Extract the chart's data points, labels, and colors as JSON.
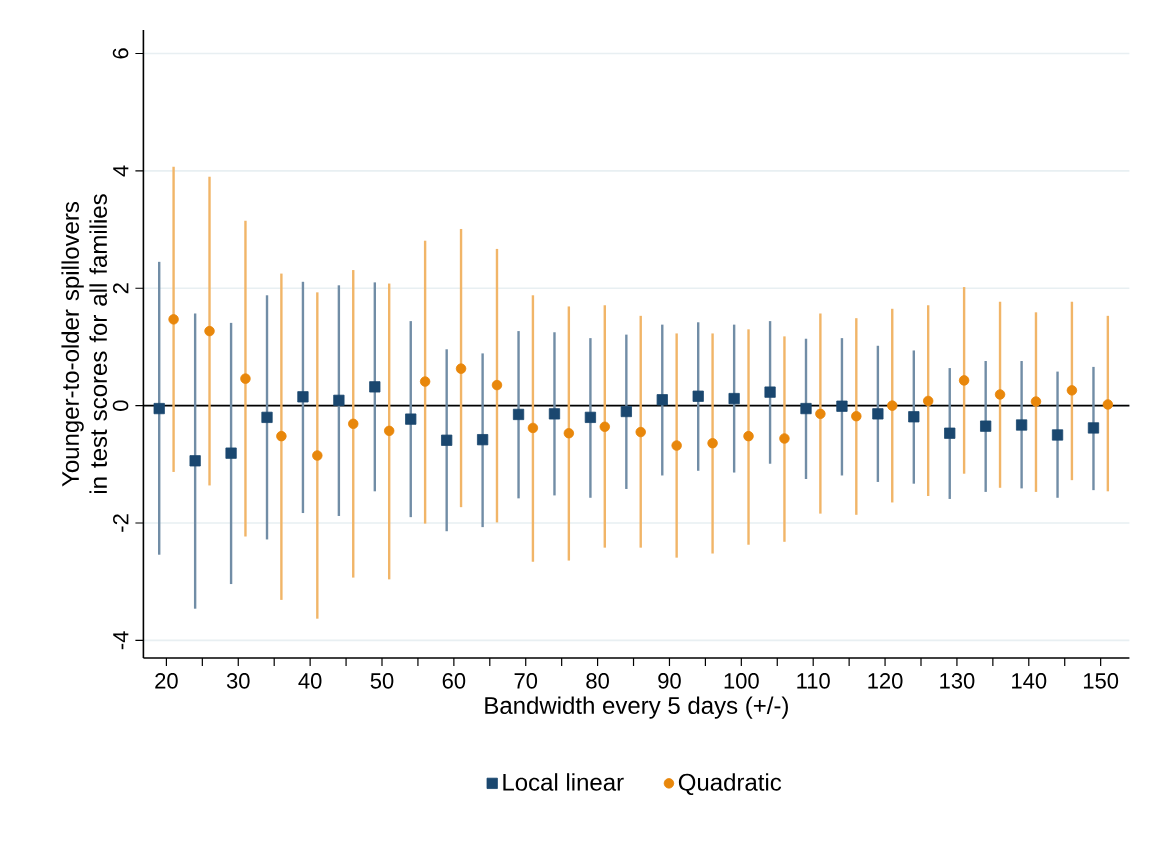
{
  "chart_data": {
    "type": "scatter",
    "xlabel": "Bandwidth every 5 days (+/-)",
    "ylabel": "Younger-to-older spillovers in test scores for all families",
    "xlim": [
      16.8,
      154
    ],
    "ylim": [
      -4.3,
      6.4
    ],
    "xticks": [
      20,
      {
        "value": 25,
        "label": null
      },
      30,
      {
        "value": 35,
        "label": null
      },
      40,
      {
        "value": 45,
        "label": null
      },
      50,
      {
        "value": 55,
        "label": null
      },
      60,
      {
        "value": 65,
        "label": null
      },
      70,
      {
        "value": 75,
        "label": null
      },
      80,
      {
        "value": 85,
        "label": null
      },
      90,
      {
        "value": 95,
        "label": null
      },
      100,
      {
        "value": 105,
        "label": null
      },
      110,
      {
        "value": 115,
        "label": null
      },
      120,
      {
        "value": 125,
        "label": null
      },
      130,
      {
        "value": 135,
        "label": null
      },
      140,
      {
        "value": 145,
        "label": null
      },
      150
    ],
    "yticks": [
      -4,
      -2,
      0,
      2,
      4,
      6
    ],
    "grid": "y",
    "legend": "bottom",
    "ref_lines": [
      {
        "axis": "y",
        "value": 0,
        "color": "#000000"
      }
    ],
    "series": [
      {
        "name": "Local linear",
        "color": "#1a476f",
        "marker": "square",
        "x": [
          19,
          24,
          29,
          34,
          39,
          44,
          49,
          54,
          59,
          64,
          69,
          74,
          79,
          84,
          89,
          94,
          99,
          104,
          109,
          114,
          119,
          124,
          129,
          134,
          139,
          144,
          149
        ],
        "values": [
          -0.05,
          -0.94,
          -0.81,
          -0.2,
          0.15,
          0.09,
          0.32,
          -0.23,
          -0.59,
          -0.58,
          -0.15,
          -0.14,
          -0.2,
          -0.1,
          0.1,
          0.16,
          0.12,
          0.23,
          -0.05,
          -0.01,
          -0.14,
          -0.19,
          -0.47,
          -0.35,
          -0.33,
          -0.5,
          -0.38
        ],
        "errors": [
          [
            -2.54,
            2.45
          ],
          [
            -3.46,
            1.57
          ],
          [
            -3.04,
            1.41
          ],
          [
            -2.28,
            1.88
          ],
          [
            -1.83,
            2.11
          ],
          [
            -1.88,
            2.05
          ],
          [
            -1.46,
            2.1
          ],
          [
            -1.9,
            1.44
          ],
          [
            -2.14,
            0.96
          ],
          [
            -2.07,
            0.89
          ],
          [
            -1.58,
            1.27
          ],
          [
            -1.53,
            1.25
          ],
          [
            -1.57,
            1.15
          ],
          [
            -1.42,
            1.21
          ],
          [
            -1.19,
            1.38
          ],
          [
            -1.11,
            1.42
          ],
          [
            -1.14,
            1.38
          ],
          [
            -0.99,
            1.44
          ],
          [
            -1.25,
            1.14
          ],
          [
            -1.19,
            1.15
          ],
          [
            -1.3,
            1.02
          ],
          [
            -1.33,
            0.94
          ],
          [
            -1.59,
            0.64
          ],
          [
            -1.47,
            0.76
          ],
          [
            -1.41,
            0.76
          ],
          [
            -1.57,
            0.58
          ],
          [
            -1.44,
            0.66
          ]
        ]
      },
      {
        "name": "Quadratic",
        "color": "#e8870b",
        "marker": "circle",
        "x": [
          21,
          26,
          31,
          36,
          41,
          46,
          51,
          56,
          61,
          66,
          71,
          76,
          81,
          86,
          91,
          96,
          101,
          106,
          111,
          116,
          121,
          126,
          131,
          136,
          141,
          146,
          151
        ],
        "values": [
          1.47,
          1.27,
          0.46,
          -0.52,
          -0.85,
          -0.31,
          -0.43,
          0.41,
          0.63,
          0.35,
          -0.38,
          -0.47,
          -0.36,
          -0.45,
          -0.68,
          -0.64,
          -0.52,
          -0.56,
          -0.14,
          -0.18,
          0.0,
          0.08,
          0.43,
          0.19,
          0.07,
          0.26,
          0.02
        ],
        "errors": [
          [
            -1.13,
            4.07
          ],
          [
            -1.36,
            3.9
          ],
          [
            -2.23,
            3.15
          ],
          [
            -3.31,
            2.25
          ],
          [
            -3.63,
            1.93
          ],
          [
            -2.93,
            2.31
          ],
          [
            -2.96,
            2.08
          ],
          [
            -2.01,
            2.81
          ],
          [
            -1.73,
            3.01
          ],
          [
            -1.99,
            2.67
          ],
          [
            -2.66,
            1.88
          ],
          [
            -2.64,
            1.69
          ],
          [
            -2.42,
            1.71
          ],
          [
            -2.42,
            1.53
          ],
          [
            -2.59,
            1.23
          ],
          [
            -2.52,
            1.23
          ],
          [
            -2.37,
            1.3
          ],
          [
            -2.32,
            1.18
          ],
          [
            -1.84,
            1.57
          ],
          [
            -1.86,
            1.49
          ],
          [
            -1.65,
            1.65
          ],
          [
            -1.54,
            1.71
          ],
          [
            -1.16,
            2.02
          ],
          [
            -1.4,
            1.77
          ],
          [
            -1.47,
            1.59
          ],
          [
            -1.27,
            1.77
          ],
          [
            -1.46,
            1.53
          ]
        ]
      }
    ]
  }
}
